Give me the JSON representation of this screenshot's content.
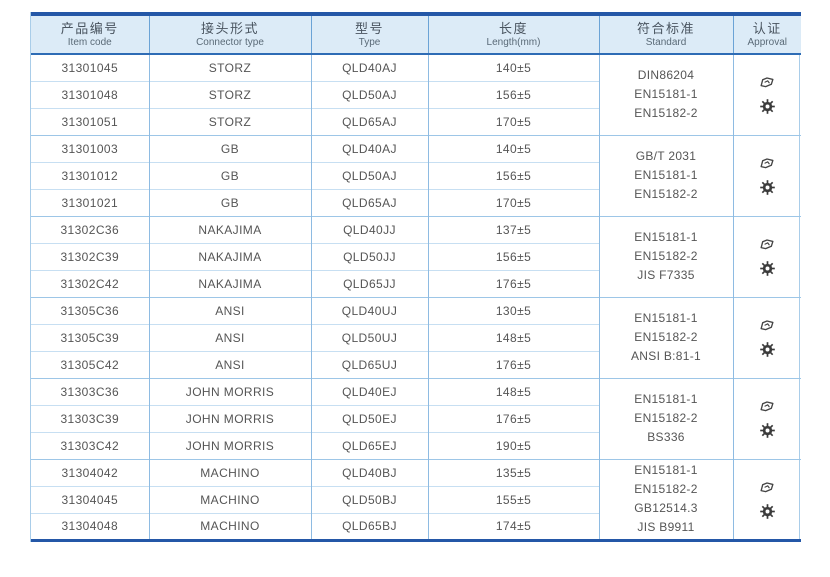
{
  "colors": {
    "accent": "#2457a7",
    "header_bg": "#dcebf7",
    "grid_line": "#8ebbe2",
    "row_line": "#c7dff2",
    "text": "#555555"
  },
  "table": {
    "headers": [
      {
        "zh": "产品编号",
        "en": "Item code"
      },
      {
        "zh": "接头形式",
        "en": "Connector type"
      },
      {
        "zh": "型号",
        "en": "Type"
      },
      {
        "zh": "长度",
        "en": "Length(mm)"
      },
      {
        "zh": "符合标准",
        "en": "Standard"
      },
      {
        "zh": "认证",
        "en": "Approval"
      }
    ],
    "groups": [
      {
        "rows": [
          {
            "item_code": "31301045",
            "connector_type": "STORZ",
            "type": "QLD40AJ",
            "length": "140±5"
          },
          {
            "item_code": "31301048",
            "connector_type": "STORZ",
            "type": "QLD50AJ",
            "length": "156±5"
          },
          {
            "item_code": "31301051",
            "connector_type": "STORZ",
            "type": "QLD65AJ",
            "length": "170±5"
          }
        ],
        "standards": [
          "DIN86204",
          "EN15181-1",
          "EN15182-2"
        ],
        "approval_icons": [
          "approval-stamp-icon",
          "gear-seal-icon"
        ]
      },
      {
        "rows": [
          {
            "item_code": "31301003",
            "connector_type": "GB",
            "type": "QLD40AJ",
            "length": "140±5"
          },
          {
            "item_code": "31301012",
            "connector_type": "GB",
            "type": "QLD50AJ",
            "length": "156±5"
          },
          {
            "item_code": "31301021",
            "connector_type": "GB",
            "type": "QLD65AJ",
            "length": "170±5"
          }
        ],
        "standards": [
          "GB/T 2031",
          "EN15181-1",
          "EN15182-2"
        ],
        "approval_icons": [
          "approval-stamp-icon",
          "gear-seal-icon"
        ]
      },
      {
        "rows": [
          {
            "item_code": "31302C36",
            "connector_type": "NAKAJIMA",
            "type": "QLD40JJ",
            "length": "137±5"
          },
          {
            "item_code": "31302C39",
            "connector_type": "NAKAJIMA",
            "type": "QLD50JJ",
            "length": "156±5"
          },
          {
            "item_code": "31302C42",
            "connector_type": "NAKAJIMA",
            "type": "QLD65JJ",
            "length": "176±5"
          }
        ],
        "standards": [
          "EN15181-1",
          "EN15182-2",
          "JIS F7335"
        ],
        "approval_icons": [
          "approval-stamp-icon",
          "gear-seal-icon"
        ]
      },
      {
        "rows": [
          {
            "item_code": "31305C36",
            "connector_type": "ANSI",
            "type": "QLD40UJ",
            "length": "130±5"
          },
          {
            "item_code": "31305C39",
            "connector_type": "ANSI",
            "type": "QLD50UJ",
            "length": "148±5"
          },
          {
            "item_code": "31305C42",
            "connector_type": "ANSI",
            "type": "QLD65UJ",
            "length": "176±5"
          }
        ],
        "standards": [
          "EN15181-1",
          "EN15182-2",
          "ANSI B:81-1"
        ],
        "approval_icons": [
          "approval-stamp-icon",
          "gear-seal-icon"
        ]
      },
      {
        "rows": [
          {
            "item_code": "31303C36",
            "connector_type": "JOHN MORRIS",
            "type": "QLD40EJ",
            "length": "148±5"
          },
          {
            "item_code": "31303C39",
            "connector_type": "JOHN MORRIS",
            "type": "QLD50EJ",
            "length": "176±5"
          },
          {
            "item_code": "31303C42",
            "connector_type": "JOHN MORRIS",
            "type": "QLD65EJ",
            "length": "190±5"
          }
        ],
        "standards": [
          "EN15181-1",
          "EN15182-2",
          "BS336"
        ],
        "approval_icons": [
          "approval-stamp-icon",
          "gear-seal-icon"
        ]
      },
      {
        "rows": [
          {
            "item_code": "31304042",
            "connector_type": "MACHINO",
            "type": "QLD40BJ",
            "length": "135±5"
          },
          {
            "item_code": "31304045",
            "connector_type": "MACHINO",
            "type": "QLD50BJ",
            "length": "155±5"
          },
          {
            "item_code": "31304048",
            "connector_type": "MACHINO",
            "type": "QLD65BJ",
            "length": "174±5"
          }
        ],
        "standards": [
          "EN15181-1",
          "EN15182-2",
          "GB12514.3",
          "JIS B9911"
        ],
        "approval_icons": [
          "approval-stamp-icon",
          "gear-seal-icon"
        ]
      }
    ]
  }
}
